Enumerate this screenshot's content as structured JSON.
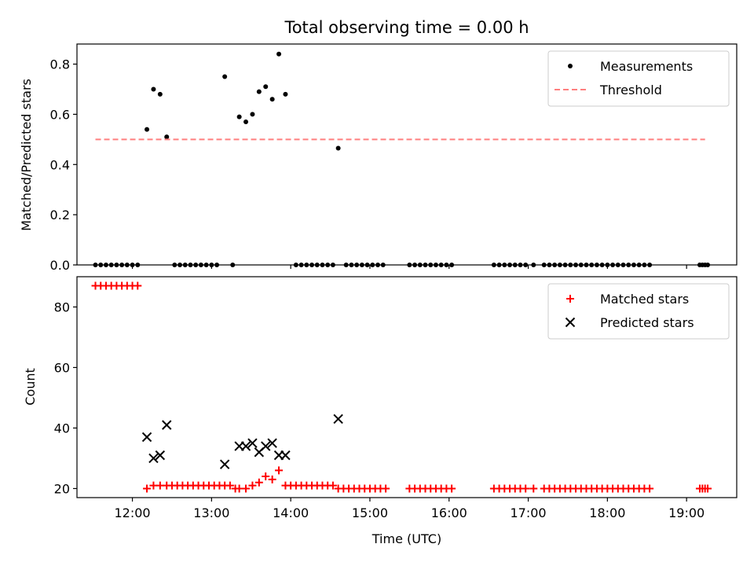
{
  "chart_data": [
    {
      "type": "scatter",
      "title": "Total observing time = 0.00 h",
      "xlabel": "",
      "ylabel": "Matched/Predicted stars",
      "ylim": [
        0,
        0.88
      ],
      "yticks": [
        0.0,
        0.2,
        0.4,
        0.6,
        0.8
      ],
      "ytick_labels": [
        "0.0",
        "0.2",
        "0.4",
        "0.6",
        "0.8"
      ],
      "xlim": [
        "11:18",
        "19:38"
      ],
      "xticks": [
        "12:00",
        "13:00",
        "14:00",
        "15:00",
        "16:00",
        "17:00",
        "18:00",
        "19:00"
      ],
      "legend_position": "top-right",
      "series": [
        {
          "name": "Measurements",
          "marker": "dot",
          "color": "#000000",
          "points": [
            [
              "11:32",
              0
            ],
            [
              "11:36",
              0
            ],
            [
              "11:40",
              0
            ],
            [
              "11:44",
              0
            ],
            [
              "11:48",
              0
            ],
            [
              "11:52",
              0
            ],
            [
              "11:56",
              0
            ],
            [
              "12:00",
              0
            ],
            [
              "12:04",
              0
            ],
            [
              "12:11",
              0.54
            ],
            [
              "12:16",
              0.7
            ],
            [
              "12:21",
              0.68
            ],
            [
              "12:26",
              0.51
            ],
            [
              "12:32",
              0
            ],
            [
              "12:36",
              0
            ],
            [
              "12:40",
              0
            ],
            [
              "12:44",
              0
            ],
            [
              "12:48",
              0
            ],
            [
              "12:52",
              0
            ],
            [
              "12:56",
              0
            ],
            [
              "13:00",
              0
            ],
            [
              "13:04",
              0
            ],
            [
              "13:10",
              0.75
            ],
            [
              "13:16",
              0
            ],
            [
              "13:21",
              0.59
            ],
            [
              "13:26",
              0.57
            ],
            [
              "13:31",
              0.6
            ],
            [
              "13:36",
              0.69
            ],
            [
              "13:41",
              0.71
            ],
            [
              "13:46",
              0.66
            ],
            [
              "13:51",
              0.84
            ],
            [
              "13:56",
              0.68
            ],
            [
              "14:04",
              0
            ],
            [
              "14:08",
              0
            ],
            [
              "14:12",
              0
            ],
            [
              "14:16",
              0
            ],
            [
              "14:20",
              0
            ],
            [
              "14:24",
              0
            ],
            [
              "14:28",
              0
            ],
            [
              "14:32",
              0
            ],
            [
              "14:36",
              0.465
            ],
            [
              "14:42",
              0
            ],
            [
              "14:46",
              0
            ],
            [
              "14:50",
              0
            ],
            [
              "14:54",
              0
            ],
            [
              "14:58",
              0
            ],
            [
              "15:02",
              0
            ],
            [
              "15:06",
              0
            ],
            [
              "15:10",
              0
            ],
            [
              "15:30",
              0
            ],
            [
              "15:34",
              0
            ],
            [
              "15:38",
              0
            ],
            [
              "15:42",
              0
            ],
            [
              "15:46",
              0
            ],
            [
              "15:50",
              0
            ],
            [
              "15:54",
              0
            ],
            [
              "15:58",
              0
            ],
            [
              "16:02",
              0
            ],
            [
              "16:34",
              0
            ],
            [
              "16:38",
              0
            ],
            [
              "16:42",
              0
            ],
            [
              "16:46",
              0
            ],
            [
              "16:50",
              0
            ],
            [
              "16:54",
              0
            ],
            [
              "16:58",
              0
            ],
            [
              "17:04",
              0
            ],
            [
              "17:12",
              0
            ],
            [
              "17:16",
              0
            ],
            [
              "17:20",
              0
            ],
            [
              "17:24",
              0
            ],
            [
              "17:28",
              0
            ],
            [
              "17:32",
              0
            ],
            [
              "17:36",
              0
            ],
            [
              "17:40",
              0
            ],
            [
              "17:44",
              0
            ],
            [
              "17:48",
              0
            ],
            [
              "17:52",
              0
            ],
            [
              "17:56",
              0
            ],
            [
              "18:00",
              0
            ],
            [
              "18:04",
              0
            ],
            [
              "18:08",
              0
            ],
            [
              "18:12",
              0
            ],
            [
              "18:16",
              0
            ],
            [
              "18:20",
              0
            ],
            [
              "18:24",
              0
            ],
            [
              "18:28",
              0
            ],
            [
              "18:32",
              0
            ],
            [
              "19:10",
              0
            ],
            [
              "19:12",
              0
            ],
            [
              "19:14",
              0
            ],
            [
              "19:16",
              0
            ]
          ]
        },
        {
          "name": "Threshold",
          "line": "dashed",
          "color": "#ff7f7f",
          "points": [
            [
              "11:32",
              0.5
            ],
            [
              "19:14",
              0.5
            ]
          ]
        }
      ]
    },
    {
      "type": "scatter",
      "title": "",
      "xlabel": "Time (UTC)",
      "ylabel": "Count",
      "ylim": [
        17,
        90
      ],
      "yticks": [
        20,
        40,
        60,
        80
      ],
      "ytick_labels": [
        "20",
        "40",
        "60",
        "80"
      ],
      "xlim": [
        "11:18",
        "19:38"
      ],
      "xticks": [
        "12:00",
        "13:00",
        "14:00",
        "15:00",
        "16:00",
        "17:00",
        "18:00",
        "19:00"
      ],
      "xtick_labels": [
        "12:00",
        "13:00",
        "14:00",
        "15:00",
        "16:00",
        "17:00",
        "18:00",
        "19:00"
      ],
      "legend_position": "top-right",
      "series": [
        {
          "name": "Matched stars",
          "marker": "plus",
          "color": "#ff0000",
          "points": [
            [
              "11:32",
              87
            ],
            [
              "11:36",
              87
            ],
            [
              "11:40",
              87
            ],
            [
              "11:44",
              87
            ],
            [
              "11:48",
              87
            ],
            [
              "11:52",
              87
            ],
            [
              "11:56",
              87
            ],
            [
              "12:00",
              87
            ],
            [
              "12:04",
              87
            ],
            [
              "12:11",
              20
            ],
            [
              "12:16",
              21
            ],
            [
              "12:21",
              21
            ],
            [
              "12:26",
              21
            ],
            [
              "12:30",
              21
            ],
            [
              "12:34",
              21
            ],
            [
              "12:38",
              21
            ],
            [
              "12:42",
              21
            ],
            [
              "12:46",
              21
            ],
            [
              "12:50",
              21
            ],
            [
              "12:54",
              21
            ],
            [
              "12:58",
              21
            ],
            [
              "13:02",
              21
            ],
            [
              "13:06",
              21
            ],
            [
              "13:10",
              21
            ],
            [
              "13:14",
              21
            ],
            [
              "13:18",
              20
            ],
            [
              "13:21",
              20
            ],
            [
              "13:26",
              20
            ],
            [
              "13:31",
              21
            ],
            [
              "13:36",
              22
            ],
            [
              "13:41",
              24
            ],
            [
              "13:46",
              23
            ],
            [
              "13:51",
              26
            ],
            [
              "13:56",
              21
            ],
            [
              "14:00",
              21
            ],
            [
              "14:04",
              21
            ],
            [
              "14:08",
              21
            ],
            [
              "14:12",
              21
            ],
            [
              "14:16",
              21
            ],
            [
              "14:20",
              21
            ],
            [
              "14:24",
              21
            ],
            [
              "14:28",
              21
            ],
            [
              "14:32",
              21
            ],
            [
              "14:36",
              20
            ],
            [
              "14:40",
              20
            ],
            [
              "14:44",
              20
            ],
            [
              "14:48",
              20
            ],
            [
              "14:52",
              20
            ],
            [
              "14:56",
              20
            ],
            [
              "15:00",
              20
            ],
            [
              "15:04",
              20
            ],
            [
              "15:08",
              20
            ],
            [
              "15:12",
              20
            ],
            [
              "15:30",
              20
            ],
            [
              "15:34",
              20
            ],
            [
              "15:38",
              20
            ],
            [
              "15:42",
              20
            ],
            [
              "15:46",
              20
            ],
            [
              "15:50",
              20
            ],
            [
              "15:54",
              20
            ],
            [
              "15:58",
              20
            ],
            [
              "16:02",
              20
            ],
            [
              "16:34",
              20
            ],
            [
              "16:38",
              20
            ],
            [
              "16:42",
              20
            ],
            [
              "16:46",
              20
            ],
            [
              "16:50",
              20
            ],
            [
              "16:54",
              20
            ],
            [
              "16:58",
              20
            ],
            [
              "17:04",
              20
            ],
            [
              "17:12",
              20
            ],
            [
              "17:16",
              20
            ],
            [
              "17:20",
              20
            ],
            [
              "17:24",
              20
            ],
            [
              "17:28",
              20
            ],
            [
              "17:32",
              20
            ],
            [
              "17:36",
              20
            ],
            [
              "17:40",
              20
            ],
            [
              "17:44",
              20
            ],
            [
              "17:48",
              20
            ],
            [
              "17:52",
              20
            ],
            [
              "17:56",
              20
            ],
            [
              "18:00",
              20
            ],
            [
              "18:04",
              20
            ],
            [
              "18:08",
              20
            ],
            [
              "18:12",
              20
            ],
            [
              "18:16",
              20
            ],
            [
              "18:20",
              20
            ],
            [
              "18:24",
              20
            ],
            [
              "18:28",
              20
            ],
            [
              "18:32",
              20
            ],
            [
              "19:10",
              20
            ],
            [
              "19:12",
              20
            ],
            [
              "19:14",
              20
            ],
            [
              "19:16",
              20
            ]
          ]
        },
        {
          "name": "Predicted stars",
          "marker": "x",
          "color": "#000000",
          "points": [
            [
              "12:11",
              37
            ],
            [
              "12:16",
              30
            ],
            [
              "12:21",
              31
            ],
            [
              "12:26",
              41
            ],
            [
              "13:10",
              28
            ],
            [
              "13:21",
              34
            ],
            [
              "13:26",
              34
            ],
            [
              "13:31",
              35
            ],
            [
              "13:36",
              32
            ],
            [
              "13:41",
              34
            ],
            [
              "13:46",
              35
            ],
            [
              "13:51",
              31
            ],
            [
              "13:56",
              31
            ],
            [
              "14:36",
              43
            ]
          ]
        }
      ]
    }
  ]
}
